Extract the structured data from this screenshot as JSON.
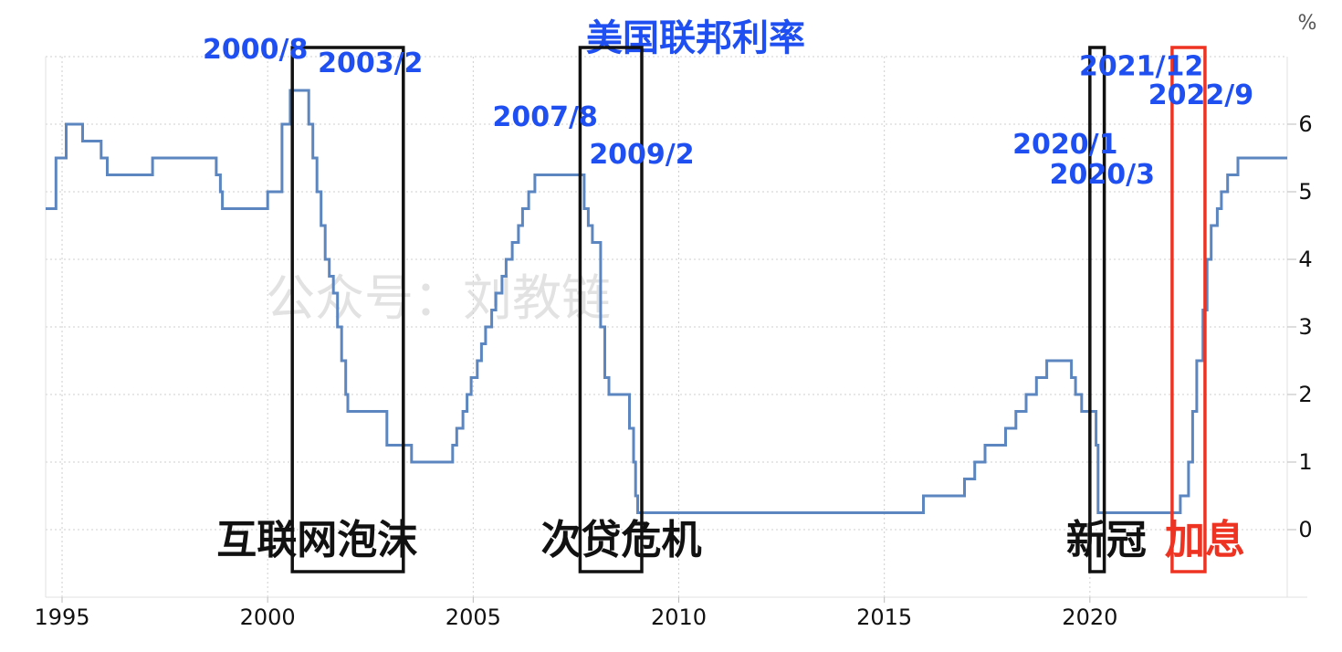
{
  "chart_data": {
    "type": "line",
    "title": "美国联邦利率",
    "unit": "%",
    "watermark": "公众号：刘教链",
    "xlim": [
      1994.6,
      2024.8
    ],
    "ylim": [
      -1,
      7
    ],
    "yticks": [
      0,
      1,
      2,
      3,
      4,
      5,
      6
    ],
    "xticks": [
      1995,
      2000,
      2005,
      2010,
      2015,
      2020
    ],
    "grid": true,
    "line_color": "#5b86bf",
    "series": [
      {
        "x": [
          1994.6,
          1994.85,
          1995.1,
          1995.5,
          1995.95,
          1996.1,
          1997.2,
          1998.75,
          1998.85,
          1998.9,
          2000.0,
          2000.35,
          2000.55,
          2001.0,
          2001.1,
          2001.2,
          2001.3,
          2001.4,
          2001.5,
          2001.6,
          2001.7,
          2001.8,
          2001.9,
          2001.95,
          2002.9,
          2003.5,
          2004.5,
          2004.6,
          2004.75,
          2004.85,
          2004.95,
          2005.1,
          2005.2,
          2005.3,
          2005.45,
          2005.55,
          2005.7,
          2005.8,
          2005.95,
          2006.1,
          2006.2,
          2006.35,
          2006.5,
          2007.7,
          2007.8,
          2007.9,
          2008.1,
          2008.2,
          2008.3,
          2008.5,
          2008.8,
          2008.9,
          2008.95,
          2009.0,
          2015.95,
          2016.95,
          2017.2,
          2017.45,
          2017.95,
          2018.2,
          2018.45,
          2018.7,
          2018.95,
          2019.55,
          2019.65,
          2019.8,
          2020.15,
          2020.2,
          2022.2,
          2022.4,
          2022.5,
          2022.6,
          2022.75,
          2022.85,
          2022.95,
          2023.1,
          2023.2,
          2023.35,
          2023.6,
          2024.8
        ],
        "y": [
          4.75,
          5.5,
          6.0,
          5.75,
          5.5,
          5.25,
          5.5,
          5.25,
          5.0,
          4.75,
          5.0,
          6.0,
          6.5,
          6.0,
          5.5,
          5.0,
          4.5,
          4.0,
          3.75,
          3.5,
          3.0,
          2.5,
          2.0,
          1.75,
          1.25,
          1.0,
          1.25,
          1.5,
          1.75,
          2.0,
          2.25,
          2.5,
          2.75,
          3.0,
          3.25,
          3.5,
          3.75,
          4.0,
          4.25,
          4.5,
          4.75,
          5.0,
          5.25,
          4.75,
          4.5,
          4.25,
          3.0,
          2.25,
          2.0,
          2.0,
          1.5,
          1.0,
          0.5,
          0.25,
          0.5,
          0.75,
          1.0,
          1.25,
          1.5,
          1.75,
          2.0,
          2.25,
          2.5,
          2.25,
          2.0,
          1.75,
          1.25,
          0.25,
          0.5,
          1.0,
          1.75,
          2.5,
          3.25,
          4.0,
          4.5,
          4.75,
          5.0,
          5.25,
          5.5,
          5.5
        ]
      }
    ],
    "date_annotations": [
      {
        "text": "2000/8",
        "x": 1999.7,
        "y": 6.97,
        "anchor": "middle"
      },
      {
        "text": "2003/2",
        "x": 2002.5,
        "y": 6.77,
        "anchor": "middle"
      },
      {
        "text": "2007/8",
        "x": 2006.75,
        "y": 5.97,
        "anchor": "middle"
      },
      {
        "text": "2009/2",
        "x": 2009.1,
        "y": 5.42,
        "anchor": "middle"
      },
      {
        "text": "2020/1",
        "x": 2019.4,
        "y": 5.57,
        "anchor": "middle"
      },
      {
        "text": "2020/3",
        "x": 2020.3,
        "y": 5.12,
        "anchor": "middle"
      },
      {
        "text": "2021/12",
        "x": 2021.25,
        "y": 6.72,
        "anchor": "middle"
      },
      {
        "text": "2022/9",
        "x": 2022.7,
        "y": 6.3,
        "anchor": "middle"
      }
    ],
    "event_boxes": [
      {
        "label": "互联网泡沫",
        "x0": 2000.6,
        "x1": 2003.3,
        "color": "#111111"
      },
      {
        "label": "次贷危机",
        "x0": 2007.6,
        "x1": 2009.1,
        "color": "#111111"
      },
      {
        "label": "新冠",
        "x0": 2020.0,
        "x1": 2020.35,
        "color": "#111111"
      },
      {
        "label": "加息",
        "x0": 2022.0,
        "x1": 2022.8,
        "color": "#ee3322"
      }
    ],
    "event_label_positions": [
      {
        "x": 2001.2
      },
      {
        "x": 2008.6
      },
      {
        "x": 2020.4
      },
      {
        "x": 2022.8
      }
    ]
  }
}
